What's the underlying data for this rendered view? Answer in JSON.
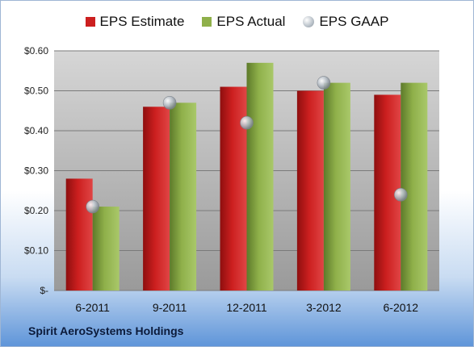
{
  "footer": {
    "company": "Spirit AeroSystems Holdings"
  },
  "colors": {
    "estimate": "#cc1f1f",
    "actual": "#8fb04a",
    "gaap": "#b8c0c8"
  },
  "chart_data": {
    "type": "bar",
    "categories": [
      "6-2011",
      "9-2011",
      "12-2011",
      "3-2012",
      "6-2012"
    ],
    "series": [
      {
        "name": "EPS Estimate",
        "values": [
          0.28,
          0.46,
          0.51,
          0.5,
          0.49
        ]
      },
      {
        "name": "EPS Actual",
        "values": [
          0.21,
          0.47,
          0.57,
          0.52,
          0.52
        ]
      },
      {
        "name": "EPS GAAP",
        "type": "scatter",
        "values": [
          0.21,
          0.47,
          0.42,
          0.52,
          0.24
        ]
      }
    ],
    "yticks": [
      "$-",
      "$0.10",
      "$0.20",
      "$0.30",
      "$0.40",
      "$0.50",
      "$0.60"
    ],
    "ylim": [
      0,
      0.6
    ],
    "grid": true,
    "legend_position": "top"
  }
}
